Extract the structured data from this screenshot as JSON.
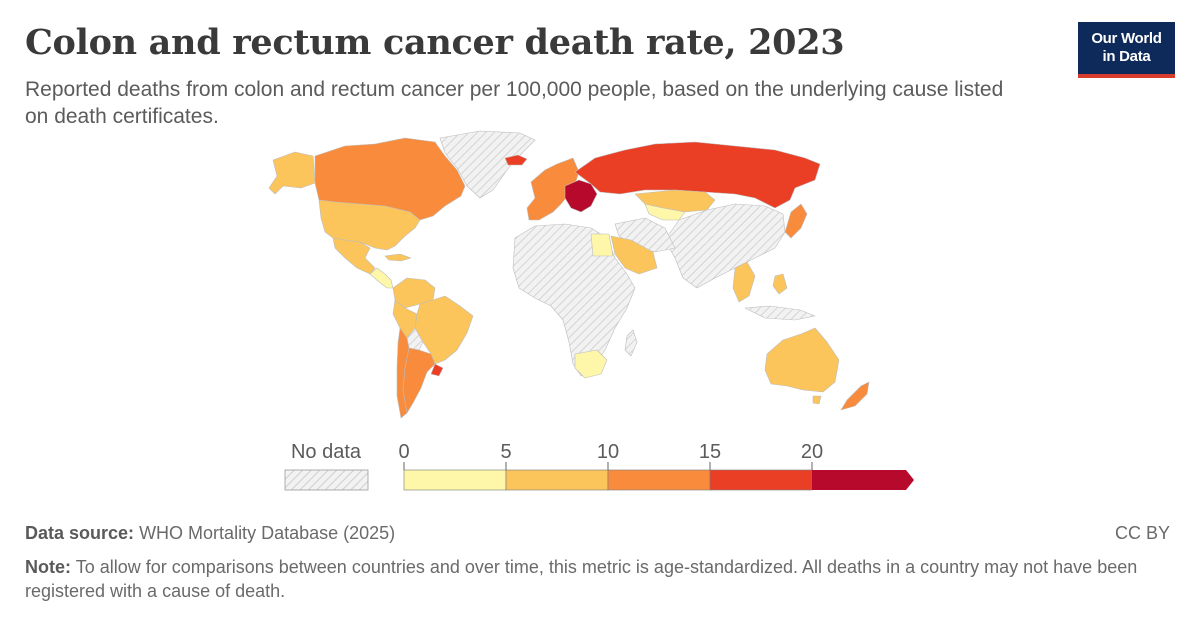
{
  "header": {
    "title": "Colon and rectum cancer death rate, 2023",
    "subtitle": "Reported deaths from colon and rectum cancer per 100,000 people, based on the underlying cause listed on death certificates.",
    "logo_line1": "Our World",
    "logo_line2": "in Data"
  },
  "map": {
    "colors": {
      "no_data_fill": "#f2f2f2",
      "no_data_hatch": "#d4d4d4",
      "border": "#bdbdbd",
      "bin_0_5": "#fef6a8",
      "bin_5_10": "#fbc55c",
      "bin_10_15": "#f98c3c",
      "bin_15_20": "#ea3e25",
      "bin_20_plus": "#b7092b"
    },
    "regions": [
      {
        "name": "Greenland",
        "bin": "no_data"
      },
      {
        "name": "Canada",
        "bin": "bin_10_15"
      },
      {
        "name": "United States",
        "bin": "bin_5_10"
      },
      {
        "name": "Mexico",
        "bin": "bin_5_10"
      },
      {
        "name": "Central America",
        "bin": "bin_0_5"
      },
      {
        "name": "Cuba",
        "bin": "bin_5_10"
      },
      {
        "name": "Colombia",
        "bin": "bin_5_10"
      },
      {
        "name": "Venezuela",
        "bin": "bin_5_10"
      },
      {
        "name": "Brazil",
        "bin": "bin_5_10"
      },
      {
        "name": "Peru",
        "bin": "bin_5_10"
      },
      {
        "name": "Bolivia",
        "bin": "no_data"
      },
      {
        "name": "Chile",
        "bin": "bin_10_15"
      },
      {
        "name": "Argentina",
        "bin": "bin_10_15"
      },
      {
        "name": "Uruguay",
        "bin": "bin_15_20"
      },
      {
        "name": "Iceland",
        "bin": "bin_15_20"
      },
      {
        "name": "Western Europe",
        "bin": "bin_10_15"
      },
      {
        "name": "Central Europe",
        "bin": "bin_20_plus"
      },
      {
        "name": "Russia",
        "bin": "bin_15_20"
      },
      {
        "name": "Kazakhstan",
        "bin": "bin_5_10"
      },
      {
        "name": "Central Asia",
        "bin": "bin_0_5"
      },
      {
        "name": "Africa",
        "bin": "no_data"
      },
      {
        "name": "Egypt",
        "bin": "bin_0_5"
      },
      {
        "name": "Arabian Peninsula",
        "bin": "bin_5_10"
      },
      {
        "name": "China and India",
        "bin": "no_data"
      },
      {
        "name": "Japan",
        "bin": "bin_10_15"
      },
      {
        "name": "South Korea",
        "bin": "bin_10_15"
      },
      {
        "name": "Southeast Asia",
        "bin": "bin_5_10"
      },
      {
        "name": "Philippines",
        "bin": "bin_5_10"
      },
      {
        "name": "South Africa",
        "bin": "bin_0_5"
      },
      {
        "name": "Australia",
        "bin": "bin_5_10"
      },
      {
        "name": "New Zealand",
        "bin": "bin_10_15"
      }
    ]
  },
  "legend": {
    "no_data_label": "No data",
    "ticks": [
      "0",
      "5",
      "10",
      "15",
      "20"
    ],
    "bins": [
      {
        "from": 0,
        "to": 5,
        "color": "#fef6a8"
      },
      {
        "from": 5,
        "to": 10,
        "color": "#fbc55c"
      },
      {
        "from": 10,
        "to": 15,
        "color": "#f98c3c"
      },
      {
        "from": 15,
        "to": 20,
        "color": "#ea3e25"
      },
      {
        "from": 20,
        "to": null,
        "color": "#b7092b"
      }
    ]
  },
  "footer": {
    "source_label": "Data source:",
    "source_text": "WHO Mortality Database (2025)",
    "license": "CC BY",
    "note_label": "Note:",
    "note_text": "To allow for comparisons between countries and over time, this metric is age-standardized. All deaths in a country may not have been registered with a cause of death."
  }
}
